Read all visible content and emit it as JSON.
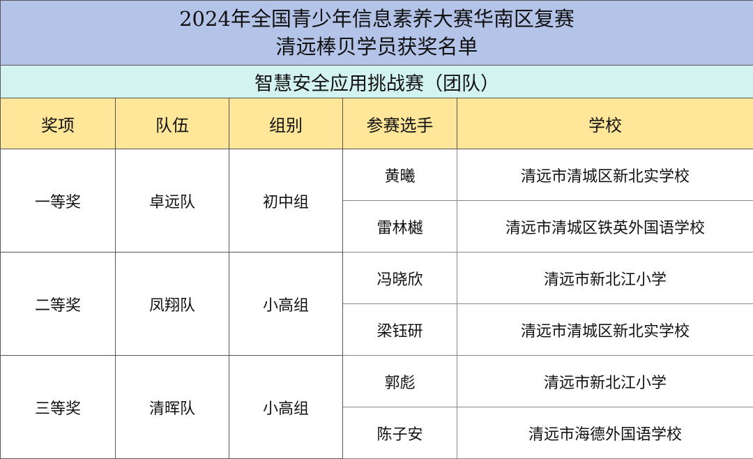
{
  "title_line1": "2024年全国青少年信息素养大赛华南区复赛",
  "title_line2": "清远棒贝学员获奖名单",
  "subtitle": "智慧安全应用挑战赛（团队）",
  "headers": [
    "奖项",
    "队伍",
    "组别",
    "参赛选手",
    "学校"
  ],
  "groups": [
    {
      "award": "一等奖",
      "team": "卓远队",
      "division": "初中组",
      "members": [
        {
          "name": "黄曦",
          "school": "清远市清城区新北实学校"
        },
        {
          "name": "雷林樾",
          "school": "清远市清城区铁英外国语学校"
        }
      ]
    },
    {
      "award": "二等奖",
      "team": "凤翔队",
      "division": "小高组",
      "members": [
        {
          "name": "冯晓欣",
          "school": "清远市新北江小学"
        },
        {
          "name": "梁钰研",
          "school": "清远市清城区新北实学校"
        }
      ]
    },
    {
      "award": "三等奖",
      "team": "清晖队",
      "division": "小高组",
      "members": [
        {
          "name": "郭彪",
          "school": "清远市新北江小学"
        },
        {
          "name": "陈子安",
          "school": "清远市海德外国语学校"
        }
      ]
    }
  ],
  "colors": {
    "title_bg": "#b4c3e8",
    "subtitle_bg": "#d3f3f1",
    "header_bg": "#ffe699"
  }
}
